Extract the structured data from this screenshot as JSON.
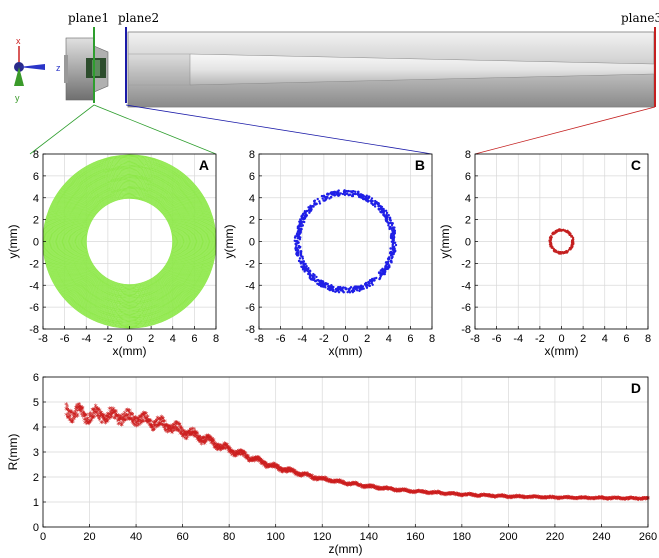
{
  "colors": {
    "plane1": "#2e9e2e",
    "plane2": "#1a1aa8",
    "plane3": "#c42020",
    "panelA": "#8ee84a",
    "panelB": "#1f1fe6",
    "panelC": "#c42020",
    "panelD": "#cc1f1f"
  },
  "header": {
    "plane1": "plane1",
    "plane2": "plane2",
    "plane3": "plane3",
    "axes": {
      "x": "x",
      "y": "y",
      "z": "z"
    }
  },
  "chart_data": [
    {
      "id": "A",
      "label": "A",
      "type": "scatter",
      "description_shape": "filled annulus",
      "inner_radius": 4.0,
      "outer_radius": 8.0,
      "xlabel": "x(mm)",
      "ylabel": "y(mm)",
      "xlim": [
        -8,
        8
      ],
      "ylim": [
        -8,
        8
      ],
      "xticks": [
        -8,
        -6,
        -4,
        -2,
        0,
        2,
        4,
        6,
        8
      ],
      "yticks": [
        8,
        6,
        4,
        2,
        0,
        -2,
        -4,
        -6,
        -8
      ],
      "grid": true
    },
    {
      "id": "B",
      "label": "B",
      "type": "scatter",
      "inner_radius": 4.2,
      "outer_radius": 4.7,
      "xlabel": "x(mm)",
      "ylabel": "y(mm)",
      "xlim": [
        -8,
        8
      ],
      "ylim": [
        -8,
        8
      ],
      "xticks": [
        -8,
        -6,
        -4,
        -2,
        0,
        2,
        4,
        6,
        8
      ],
      "yticks": [
        8,
        6,
        4,
        2,
        0,
        -2,
        -4,
        -6,
        -8
      ],
      "grid": true
    },
    {
      "id": "C",
      "label": "C",
      "type": "scatter",
      "inner_radius": 0.95,
      "outer_radius": 1.15,
      "xlabel": "x(mm)",
      "ylabel": "y(mm)",
      "xlim": [
        -8,
        8
      ],
      "ylim": [
        -8,
        8
      ],
      "xticks": [
        -8,
        -6,
        -4,
        -2,
        0,
        2,
        4,
        6,
        8
      ],
      "yticks": [
        8,
        6,
        4,
        2,
        0,
        -2,
        -4,
        -6,
        -8
      ],
      "grid": true
    },
    {
      "id": "D",
      "label": "D",
      "type": "scatter",
      "xlabel": "z(mm)",
      "ylabel": "R(mm)",
      "xlim": [
        0,
        260
      ],
      "ylim": [
        0,
        6
      ],
      "xticks": [
        0,
        20,
        40,
        60,
        80,
        100,
        120,
        140,
        160,
        180,
        200,
        220,
        240,
        260
      ],
      "yticks": [
        6,
        5,
        4,
        3,
        2,
        1,
        0
      ],
      "grid": true,
      "x": [
        10,
        15,
        20,
        30,
        40,
        50,
        60,
        70,
        80,
        90,
        100,
        110,
        120,
        130,
        140,
        150,
        160,
        170,
        180,
        190,
        200,
        210,
        220,
        230,
        240,
        250,
        260
      ],
      "y": [
        4.6,
        4.5,
        4.45,
        4.4,
        4.3,
        4.1,
        3.8,
        3.45,
        3.05,
        2.7,
        2.35,
        2.1,
        1.88,
        1.72,
        1.58,
        1.47,
        1.38,
        1.32,
        1.26,
        1.22,
        1.18,
        1.16,
        1.14,
        1.13,
        1.12,
        1.11,
        1.1
      ],
      "spread": [
        0.5,
        0.55,
        0.5,
        0.45,
        0.42,
        0.4,
        0.36,
        0.3,
        0.25,
        0.2,
        0.17,
        0.14,
        0.12,
        0.1,
        0.09,
        0.08,
        0.07,
        0.07,
        0.06,
        0.06,
        0.06,
        0.05,
        0.05,
        0.05,
        0.05,
        0.05,
        0.05
      ]
    }
  ]
}
